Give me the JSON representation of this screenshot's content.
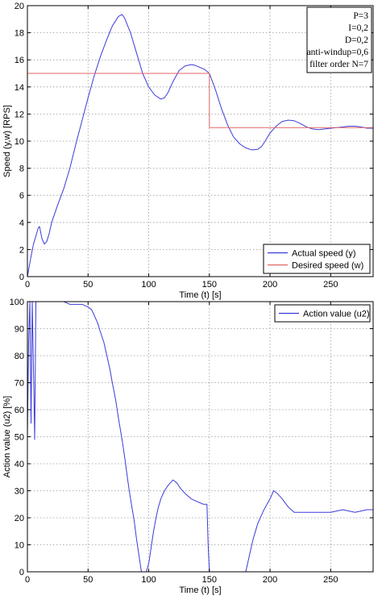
{
  "chart_data": [
    {
      "type": "line",
      "xlabel": "Time (t) [s]",
      "ylabel": "Speed (y,w) [RPS]",
      "xlim": [
        0,
        285
      ],
      "ylim": [
        0,
        20
      ],
      "xticks": [
        0,
        50,
        100,
        150,
        200,
        250
      ],
      "yticks": [
        0,
        2,
        4,
        6,
        8,
        10,
        12,
        14,
        16,
        18,
        20
      ],
      "grid": true,
      "legend_position": "bottom-right",
      "annotation_lines": [
        "P=3",
        "I=0,2",
        "D=0,2",
        "anti-windup=0,6",
        "filter order N=7"
      ],
      "series": [
        {
          "name": "Actual speed (y)",
          "color": "#3b3bd9",
          "x": [
            0,
            3,
            5,
            7,
            9,
            10,
            12,
            14,
            16,
            18,
            20,
            25,
            30,
            35,
            40,
            45,
            50,
            55,
            60,
            65,
            70,
            75,
            78,
            80,
            85,
            90,
            95,
            100,
            105,
            110,
            113,
            116,
            120,
            125,
            130,
            135,
            138,
            142,
            146,
            150,
            155,
            160,
            165,
            170,
            175,
            180,
            185,
            190,
            193,
            196,
            200,
            205,
            210,
            215,
            220,
            225,
            230,
            235,
            240,
            245,
            250,
            255,
            260,
            265,
            270,
            275,
            280,
            285
          ],
          "y": [
            0,
            1.5,
            2.4,
            3.0,
            3.6,
            3.7,
            2.8,
            2.4,
            2.6,
            3.2,
            4.0,
            5.3,
            6.5,
            8.0,
            9.8,
            11.5,
            13.2,
            14.8,
            16.2,
            17.4,
            18.5,
            19.2,
            19.35,
            19.1,
            18.0,
            16.5,
            15.0,
            14.0,
            13.4,
            13.1,
            13.2,
            13.6,
            14.4,
            15.2,
            15.55,
            15.65,
            15.6,
            15.45,
            15.3,
            15.0,
            13.8,
            12.4,
            11.2,
            10.3,
            9.8,
            9.5,
            9.35,
            9.4,
            9.6,
            10.0,
            10.6,
            11.1,
            11.45,
            11.55,
            11.5,
            11.3,
            11.05,
            10.9,
            10.85,
            10.9,
            10.95,
            11.0,
            11.05,
            11.1,
            11.1,
            11.05,
            10.95,
            10.95
          ]
        },
        {
          "name": "Desired speed (w)",
          "color": "#e06666",
          "x": [
            0,
            150,
            150,
            285
          ],
          "y": [
            15,
            15,
            11,
            11
          ]
        }
      ]
    },
    {
      "type": "line",
      "xlabel": "Time (t) [s]",
      "ylabel": "Action value (u2) [%]",
      "xlim": [
        0,
        285
      ],
      "ylim": [
        0,
        100
      ],
      "xticks": [
        0,
        50,
        100,
        150,
        200,
        250
      ],
      "yticks": [
        0,
        10,
        20,
        30,
        40,
        50,
        60,
        70,
        80,
        90,
        100
      ],
      "grid": true,
      "legend_position": "top-right",
      "series": [
        {
          "name": "Action value (u2)",
          "color": "#3b3bd9",
          "x": [
            0,
            1,
            2,
            3,
            4,
            5,
            6,
            7,
            8,
            9,
            10,
            12,
            15,
            20,
            25,
            30,
            35,
            40,
            45,
            50,
            53,
            55,
            58,
            60,
            63,
            65,
            68,
            70,
            73,
            75,
            78,
            80,
            83,
            85,
            88,
            90,
            92,
            94,
            96,
            98,
            100,
            102,
            104,
            106,
            108,
            110,
            113,
            116,
            120,
            123,
            126,
            130,
            135,
            140,
            145,
            148,
            149,
            150,
            151,
            152,
            155,
            160,
            165,
            170,
            175,
            178,
            180,
            183,
            186,
            190,
            195,
            200,
            203,
            206,
            210,
            215,
            220,
            230,
            240,
            250,
            260,
            270,
            280,
            285
          ],
          "y": [
            50,
            85,
            100,
            55,
            100,
            75,
            49,
            100,
            100,
            100,
            100,
            100,
            100,
            100,
            100,
            100,
            99,
            99,
            99,
            98,
            97,
            95,
            92,
            89,
            85,
            81,
            75,
            70,
            63,
            57,
            49,
            43,
            33,
            27,
            19,
            12,
            6,
            0,
            0,
            0,
            3,
            9,
            15,
            20,
            24,
            27,
            30,
            32,
            34,
            33,
            31,
            29,
            27,
            26,
            25,
            25,
            10,
            0,
            0,
            0,
            0,
            0,
            0,
            0,
            0,
            0,
            0,
            6,
            12,
            18,
            23,
            27,
            30,
            29,
            27,
            24,
            22,
            22,
            22,
            22,
            23,
            22,
            23,
            23
          ]
        }
      ]
    }
  ]
}
